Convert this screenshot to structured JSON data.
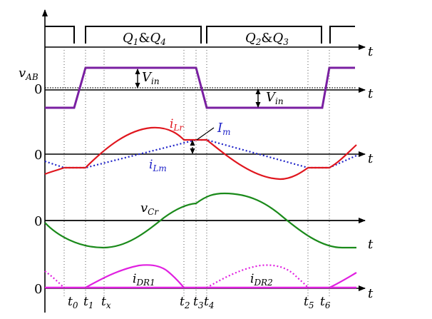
{
  "colors": {
    "axis": "#000000",
    "gate": "#000000",
    "vab": "#7a1fa2",
    "ilr": "#e0161e",
    "ilm": "#1f23c8",
    "vcr": "#1a8a1a",
    "idr": "#e020e0"
  },
  "gate_panel": {
    "q14": {
      "main": "Q",
      "sub1": "1",
      "amp": "&",
      "main2": "Q",
      "sub2": "4"
    },
    "q23": {
      "main": "Q",
      "sub1": "2",
      "amp": "&",
      "main2": "Q",
      "sub2": "3"
    }
  },
  "axis_t": "t",
  "vab_panel": {
    "label_main": "v",
    "label_sub": "AB",
    "zero": "0",
    "vin1_main": "V",
    "vin1_sub": "in",
    "vin2_main": "V",
    "vin2_sub": "in"
  },
  "current_panel": {
    "zero": "0",
    "ilr_main": "i",
    "ilr_sub": "Lr",
    "ilm_main": "i",
    "ilm_sub": "Lm",
    "im_main": "I",
    "im_sub": "m"
  },
  "vcr_panel": {
    "zero": "0",
    "vcr_main": "v",
    "vcr_sub": "Cr"
  },
  "idr_panel": {
    "zero": "0",
    "idr1_main": "i",
    "idr1_sub": "DR1",
    "idr2_main": "i",
    "idr2_sub": "DR2"
  },
  "time_ticks": [
    {
      "main": "t",
      "sub": "0"
    },
    {
      "main": "t",
      "sub": "1"
    },
    {
      "main": "t",
      "sub": "x"
    },
    {
      "main": "t",
      "sub": "2"
    },
    {
      "main": "t",
      "sub": "3"
    },
    {
      "main": "t",
      "sub": "4"
    },
    {
      "main": "t",
      "sub": "5"
    },
    {
      "main": "t",
      "sub": "6"
    }
  ]
}
